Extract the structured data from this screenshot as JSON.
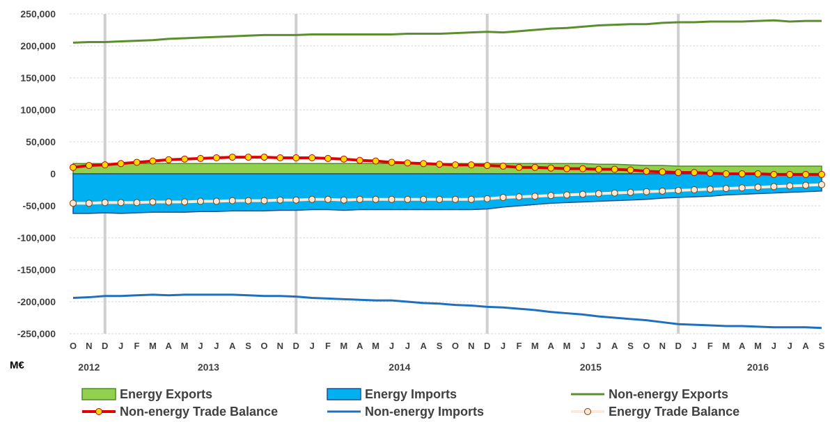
{
  "chart_data": {
    "type": "line",
    "unit_label": "M€",
    "ylim": [
      -250000,
      250000
    ],
    "y_ticks": [
      250000,
      200000,
      150000,
      100000,
      50000,
      0,
      -50000,
      -100000,
      -150000,
      -200000,
      -250000
    ],
    "y_tick_labels": [
      "250,000",
      "200,000",
      "150,000",
      "100,000",
      "50,000",
      "0",
      "-50,000",
      "-100,000",
      "-150,000",
      "-200,000",
      "-250,000"
    ],
    "month_labels": [
      "O",
      "N",
      "D",
      "J",
      "F",
      "M",
      "A",
      "M",
      "J",
      "J",
      "A",
      "S",
      "O",
      "N",
      "D",
      "J",
      "F",
      "M",
      "A",
      "M",
      "J",
      "J",
      "A",
      "S",
      "O",
      "N",
      "D",
      "J",
      "F",
      "M",
      "A",
      "M",
      "J",
      "J",
      "A",
      "S",
      "O",
      "N",
      "D",
      "J",
      "F",
      "M",
      "A",
      "M",
      "J",
      "J",
      "A",
      "S"
    ],
    "years": [
      {
        "label": "2012",
        "start": 0,
        "end": 2
      },
      {
        "label": "2013",
        "start": 3,
        "end": 14
      },
      {
        "label": "2014",
        "start": 15,
        "end": 26
      },
      {
        "label": "2015",
        "start": 27,
        "end": 38
      },
      {
        "label": "2016",
        "start": 39,
        "end": 47
      }
    ],
    "year_divider_indices": [
      2,
      14,
      26,
      38
    ],
    "grid": true,
    "legend_position": "bottom",
    "series": [
      {
        "name": "Energy Exports",
        "kind": "area",
        "color": "#92d050",
        "stroke": "#4e8a2a",
        "values": [
          16000,
          16000,
          16000,
          16000,
          16000,
          16000,
          16000,
          16000,
          16000,
          16000,
          16000,
          16000,
          16000,
          16000,
          16000,
          16000,
          16000,
          16000,
          16000,
          16000,
          16000,
          16000,
          16000,
          16000,
          16000,
          16000,
          16000,
          16000,
          16000,
          16000,
          16000,
          16000,
          16000,
          15000,
          15000,
          14000,
          13000,
          13000,
          12000,
          12000,
          12000,
          12000,
          12000,
          12000,
          12000,
          12000,
          12000,
          12000
        ]
      },
      {
        "name": "Energy Imports",
        "kind": "area",
        "color": "#00b0f0",
        "stroke": "#1f4e8c",
        "values": [
          -62000,
          -62000,
          -61000,
          -62000,
          -61000,
          -60000,
          -60000,
          -60000,
          -59000,
          -59000,
          -58000,
          -58000,
          -58000,
          -57000,
          -57000,
          -56000,
          -56000,
          -57000,
          -56000,
          -56000,
          -56000,
          -56000,
          -56000,
          -56000,
          -56000,
          -56000,
          -55000,
          -52000,
          -50000,
          -48000,
          -46000,
          -45000,
          -44000,
          -43000,
          -42000,
          -41000,
          -40000,
          -38000,
          -37000,
          -36000,
          -35000,
          -33000,
          -32000,
          -31000,
          -30000,
          -29000,
          -28000,
          -27000
        ]
      },
      {
        "name": "Non-energy Exports",
        "kind": "line",
        "color": "#5b8f2d",
        "values": [
          205000,
          206000,
          206000,
          207000,
          208000,
          209000,
          211000,
          212000,
          213000,
          214000,
          215000,
          216000,
          217000,
          217000,
          217000,
          218000,
          218000,
          218000,
          218000,
          218000,
          218000,
          219000,
          219000,
          219000,
          220000,
          221000,
          222000,
          221000,
          223000,
          225000,
          227000,
          228000,
          230000,
          232000,
          233000,
          234000,
          234000,
          236000,
          237000,
          237000,
          238000,
          238000,
          238000,
          239000,
          240000,
          238000,
          239000,
          239000
        ]
      },
      {
        "name": "Non-energy Trade Balance",
        "kind": "line-marker",
        "color": "#e00000",
        "marker_fill": "#ffd700",
        "marker_stroke": "#c00000",
        "values": [
          10000,
          13000,
          14000,
          16000,
          18000,
          20000,
          22000,
          23000,
          24000,
          25000,
          26000,
          26000,
          26000,
          25000,
          25000,
          25000,
          24000,
          23000,
          21000,
          20000,
          18000,
          17000,
          16000,
          15000,
          14000,
          14000,
          13000,
          12000,
          10000,
          10000,
          9000,
          8000,
          8000,
          7000,
          7000,
          6000,
          4000,
          3000,
          2000,
          2000,
          1000,
          0,
          0,
          0,
          -1000,
          -1000,
          -1000,
          -1000
        ]
      },
      {
        "name": "Non-energy Imports",
        "kind": "line",
        "color": "#1f6fbf",
        "values": [
          -194000,
          -193000,
          -191000,
          -191000,
          -190000,
          -189000,
          -190000,
          -189000,
          -189000,
          -189000,
          -189000,
          -190000,
          -191000,
          -191000,
          -192000,
          -194000,
          -195000,
          -196000,
          -197000,
          -198000,
          -198000,
          -200000,
          -202000,
          -203000,
          -205000,
          -206000,
          -208000,
          -209000,
          -211000,
          -213000,
          -216000,
          -218000,
          -220000,
          -223000,
          -225000,
          -227000,
          -229000,
          -232000,
          -235000,
          -236000,
          -237000,
          -238000,
          -238000,
          -239000,
          -240000,
          -240000,
          -240000,
          -241000
        ]
      },
      {
        "name": "Energy Trade Balance",
        "kind": "line-marker",
        "color": "#fde9d9",
        "marker_fill": "#fde9d9",
        "marker_stroke": "#7f3f00",
        "values": [
          -46000,
          -46000,
          -45000,
          -45000,
          -45000,
          -44000,
          -44000,
          -44000,
          -43000,
          -43000,
          -42000,
          -42000,
          -42000,
          -41000,
          -41000,
          -40000,
          -40000,
          -41000,
          -40000,
          -40000,
          -40000,
          -40000,
          -40000,
          -40000,
          -40000,
          -40000,
          -39000,
          -37000,
          -36000,
          -35000,
          -34000,
          -33000,
          -32000,
          -31000,
          -30000,
          -29000,
          -28000,
          -27000,
          -26000,
          -25000,
          -24000,
          -23000,
          -22000,
          -21000,
          -20000,
          -19000,
          -18000,
          -17000
        ]
      }
    ]
  }
}
